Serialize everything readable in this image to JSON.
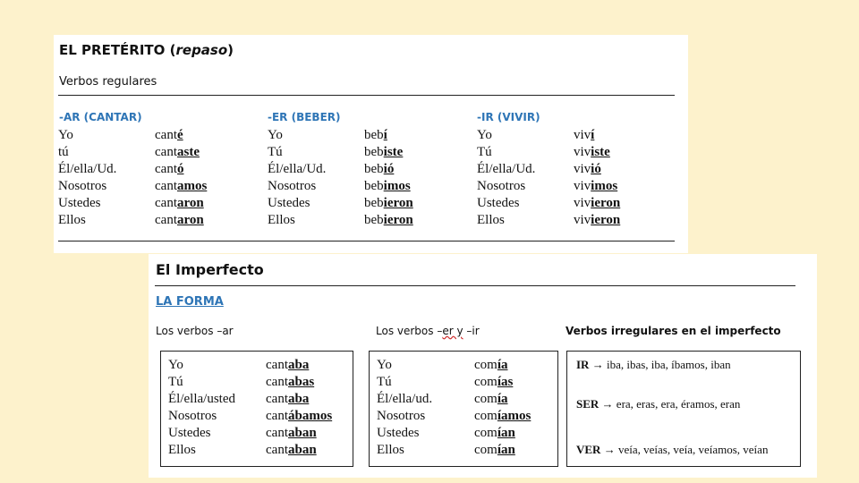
{
  "preterito": {
    "title_main": "EL PRETÉRITO (",
    "title_italic": "repaso",
    "title_close": ")",
    "subtitle": "Verbos regulares",
    "groups": [
      {
        "heading": "-AR (CANTAR)",
        "pronouns": [
          "Yo",
          "tú",
          "Él/ella/Ud.",
          "Nosotros",
          "Ustedes",
          "Ellos"
        ],
        "forms": [
          {
            "stem": "cant",
            "ending": "é"
          },
          {
            "stem": "cant",
            "ending": "aste"
          },
          {
            "stem": "cant",
            "ending": "ó"
          },
          {
            "stem": "cant",
            "ending": "amos"
          },
          {
            "stem": "cant",
            "ending": "aron"
          },
          {
            "stem": "cant",
            "ending": "aron"
          }
        ]
      },
      {
        "heading": "-ER (BEBER)",
        "pronouns": [
          "Yo",
          "Tú",
          "Él/ella/Ud.",
          "Nosotros",
          "Ustedes",
          "Ellos"
        ],
        "forms": [
          {
            "stem": "beb",
            "ending": "í"
          },
          {
            "stem": "beb",
            "ending": "iste"
          },
          {
            "stem": "beb",
            "ending": "ió"
          },
          {
            "stem": "beb",
            "ending": "imos"
          },
          {
            "stem": "beb",
            "ending": "ieron"
          },
          {
            "stem": "beb",
            "ending": "ieron"
          }
        ]
      },
      {
        "heading": "-IR (VIVIR)",
        "pronouns": [
          "Yo",
          "Tú",
          "Él/ella/Ud.",
          "Nosotros",
          "Ustedes",
          "Ellos"
        ],
        "forms": [
          {
            "stem": "viv",
            "ending": "í"
          },
          {
            "stem": "viv",
            "ending": "iste"
          },
          {
            "stem": "viv",
            "ending": "ió"
          },
          {
            "stem": "viv",
            "ending": "imos"
          },
          {
            "stem": "viv",
            "ending": "ieron"
          },
          {
            "stem": "viv",
            "ending": "ieron"
          }
        ]
      }
    ]
  },
  "imperfecto": {
    "title": "El Imperfecto",
    "section_link": "LA FORMA",
    "label_ar": "Los verbos –ar",
    "label_er_pre": "Los verbos –",
    "label_er_mid": "er y",
    "label_er_post": " –ir",
    "label_irregular": "Verbos irregulares en el imperfecto",
    "ar": {
      "pronouns": [
        "Yo",
        "Tú",
        "Él/ella/usted",
        "Nosotros",
        "Ustedes",
        "Ellos"
      ],
      "forms": [
        {
          "stem": "cant",
          "ending": "aba"
        },
        {
          "stem": "cant",
          "ending": "abas"
        },
        {
          "stem": "cant",
          "ending": "aba"
        },
        {
          "stem": "cant",
          "ending": "ábamos"
        },
        {
          "stem": "cant",
          "ending": "aban"
        },
        {
          "stem": "cant",
          "ending": "aban"
        }
      ]
    },
    "er": {
      "pronouns": [
        "Yo",
        "Tú",
        "Él/ella/ud.",
        "Nosotros",
        "Ustedes",
        "Ellos"
      ],
      "forms": [
        {
          "stem": "com",
          "ending": "ía"
        },
        {
          "stem": "com",
          "ending": "ías"
        },
        {
          "stem": "com",
          "ending": "ía"
        },
        {
          "stem": "com",
          "ending": "íamos"
        },
        {
          "stem": "com",
          "ending": "ían"
        },
        {
          "stem": "com",
          "ending": "ían"
        }
      ]
    },
    "irregulars": [
      {
        "verb": "IR",
        "arrow": " → ",
        "forms": "iba, ibas, iba, íbamos, iban"
      },
      {
        "verb": "SER",
        "arrow": " → ",
        "forms": "era, eras, era, éramos, eran"
      },
      {
        "verb": "VER",
        "arrow": " → ",
        "forms": "veía, veías, veía, veíamos, veían"
      }
    ]
  }
}
